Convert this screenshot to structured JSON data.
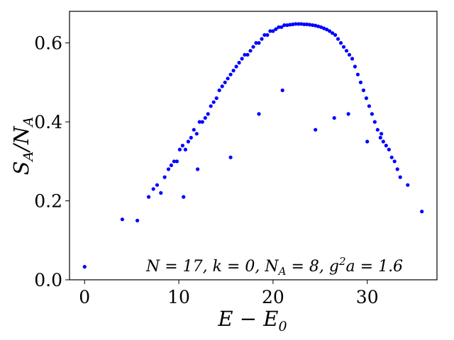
{
  "chart_data": {
    "type": "scatter",
    "title": "",
    "xlabel": "E − E",
    "xlabel_sub": "0",
    "ylabel": "S",
    "ylabel_sub1": "A",
    "ylabel_mid": "/N",
    "ylabel_sub2": "A",
    "annotation": "N = 17,  k = 0,  N  = 8,  g a = 1.6",
    "annotation_parts": {
      "p1": "N = 17,  k = 0,  N",
      "sub": "A",
      "p2": " = 8,  g",
      "sup": "2",
      "p3": "a = 1.6"
    },
    "xlim": [
      -1.6,
      37.4
    ],
    "ylim": [
      0.0,
      0.68
    ],
    "xticks": [
      0,
      10,
      20,
      30
    ],
    "xtick_labels": [
      "0",
      "10",
      "20",
      "30"
    ],
    "yticks": [
      0.0,
      0.2,
      0.4,
      0.6
    ],
    "ytick_labels": [
      "0.0",
      "0.2",
      "0.4",
      "0.6"
    ],
    "grid": false,
    "marker_color": "#0000ff",
    "series": [
      {
        "x": [
          0.0,
          4.0,
          5.6,
          6.8,
          7.3,
          7.7,
          8.1,
          8.5,
          8.9,
          9.2,
          9.5,
          9.8,
          10.1,
          10.4,
          10.7,
          11.0,
          11.3,
          11.6,
          11.9,
          12.2,
          12.5,
          12.8,
          13.1,
          13.4,
          13.7,
          14.0,
          14.3,
          14.6,
          14.9,
          15.2,
          15.5,
          15.8,
          16.1,
          16.4,
          16.7,
          17.0,
          17.3,
          17.6,
          17.9,
          18.2,
          18.5,
          18.8,
          19.1,
          19.4,
          19.7,
          20.0,
          20.3,
          20.6,
          20.9,
          21.2,
          21.5,
          21.8,
          22.1,
          22.4,
          22.7,
          23.0,
          23.3,
          23.6,
          23.9,
          24.2,
          24.5,
          24.8,
          25.1,
          25.4,
          25.7,
          26.0,
          26.3,
          26.6,
          26.9,
          27.2,
          27.5,
          27.8,
          28.1,
          28.4,
          28.7,
          29.0,
          29.3,
          29.6,
          29.9,
          30.2,
          30.5,
          30.8,
          31.1,
          31.4,
          31.7,
          32.0,
          32.3,
          32.6,
          32.9,
          33.2,
          33.5,
          34.3,
          35.8,
          10.5,
          12.0,
          15.5,
          18.5,
          21.0,
          24.5,
          26.5,
          28.0,
          30.0,
          31.5
        ],
        "y": [
          0.033,
          0.153,
          0.15,
          0.21,
          0.23,
          0.24,
          0.22,
          0.26,
          0.28,
          0.29,
          0.3,
          0.3,
          0.33,
          0.34,
          0.33,
          0.35,
          0.36,
          0.38,
          0.37,
          0.4,
          0.4,
          0.41,
          0.42,
          0.44,
          0.45,
          0.46,
          0.48,
          0.49,
          0.5,
          0.51,
          0.52,
          0.53,
          0.54,
          0.55,
          0.56,
          0.57,
          0.57,
          0.58,
          0.59,
          0.6,
          0.6,
          0.61,
          0.62,
          0.62,
          0.63,
          0.63,
          0.635,
          0.64,
          0.64,
          0.645,
          0.645,
          0.646,
          0.647,
          0.648,
          0.648,
          0.648,
          0.647,
          0.647,
          0.646,
          0.645,
          0.644,
          0.642,
          0.64,
          0.637,
          0.634,
          0.63,
          0.625,
          0.62,
          0.61,
          0.6,
          0.59,
          0.58,
          0.57,
          0.56,
          0.54,
          0.52,
          0.5,
          0.48,
          0.46,
          0.44,
          0.42,
          0.4,
          0.38,
          0.36,
          0.35,
          0.34,
          0.33,
          0.31,
          0.3,
          0.28,
          0.26,
          0.24,
          0.173,
          0.21,
          0.28,
          0.31,
          0.42,
          0.48,
          0.38,
          0.41,
          0.42,
          0.35,
          0.37
        ]
      }
    ]
  }
}
